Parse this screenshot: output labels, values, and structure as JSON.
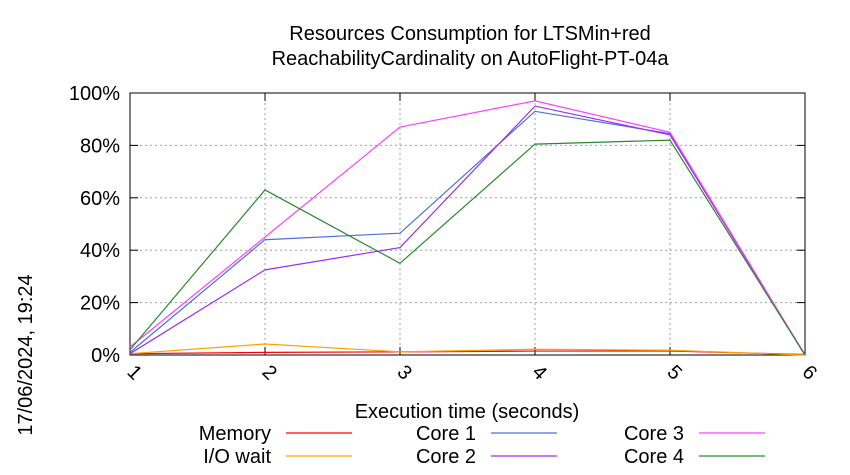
{
  "chart_data": {
    "type": "line",
    "title": "Resources Consumption for LTSMin+red",
    "subtitle": "ReachabilityCardinality on AutoFlight-PT-04a",
    "xlabel": "Execution time (seconds)",
    "side_label": "17/06/2024, 19:24",
    "x": [
      1,
      2,
      3,
      4,
      5,
      6
    ],
    "xlim": [
      1,
      6
    ],
    "ylim": [
      0,
      100
    ],
    "y_ticks": [
      "0%",
      "20%",
      "40%",
      "60%",
      "80%",
      "100%"
    ],
    "x_ticks": [
      "1",
      "2",
      "3",
      "4",
      "5",
      "6"
    ],
    "grid": true,
    "legend_placement": "bottom",
    "series": [
      {
        "name": "Memory",
        "color": "#ff0000",
        "values": [
          0.5,
          1.0,
          1.2,
          1.5,
          1.5,
          0.2
        ]
      },
      {
        "name": "I/O wait",
        "color": "#ffa000",
        "values": [
          0.5,
          4.2,
          1.2,
          2.2,
          1.8,
          0.0
        ]
      },
      {
        "name": "Core 1",
        "color": "#4f6fd8",
        "values": [
          1.0,
          44.0,
          46.5,
          93.0,
          84.5,
          0.0
        ]
      },
      {
        "name": "Core 2",
        "color": "#9b30f0",
        "values": [
          0.5,
          32.5,
          41.0,
          95.0,
          84.0,
          0.0
        ]
      },
      {
        "name": "Core 3",
        "color": "#ff40ff",
        "values": [
          3.0,
          45.0,
          87.0,
          97.0,
          85.0,
          0.0
        ]
      },
      {
        "name": "Core 4",
        "color": "#2a8a2a",
        "values": [
          2.0,
          63.0,
          35.0,
          80.5,
          82.0,
          0.0
        ]
      }
    ]
  }
}
